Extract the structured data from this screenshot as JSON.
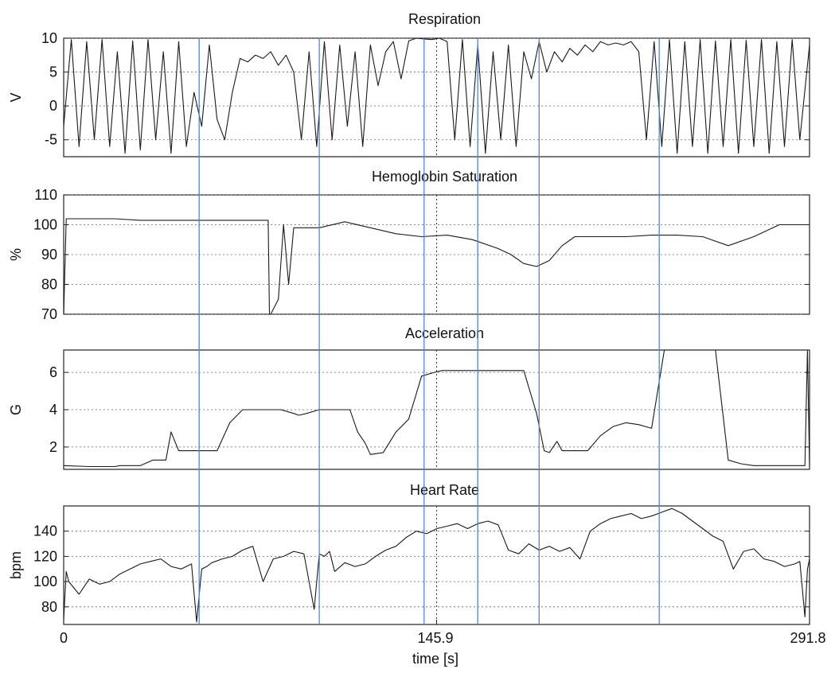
{
  "figure": {
    "xlabel": "time [s]",
    "x_range": [
      0,
      291.8
    ],
    "x_ticks": [
      "0",
      "145.9",
      "291.8"
    ],
    "event_lines_color": "#5a82c8",
    "dotted_midline_at": 145.9
  },
  "chart_data": [
    {
      "type": "line",
      "title": "Respiration",
      "ylabel": "V",
      "ylim": [
        -7.5,
        10
      ],
      "yticks": [
        "10",
        "5",
        "0",
        "-5"
      ],
      "grid": true,
      "series": [
        {
          "x": [
            0,
            3,
            6,
            9,
            12,
            15,
            18,
            21,
            24,
            27,
            30,
            33,
            36,
            39,
            42,
            45,
            48,
            51,
            54,
            57,
            60,
            63,
            66,
            69,
            72,
            75,
            78,
            81,
            84,
            87,
            90,
            93,
            96,
            99,
            102,
            105,
            108,
            111,
            114,
            117,
            120,
            123,
            126,
            129,
            132,
            135,
            138,
            141,
            144,
            147,
            150,
            153,
            156,
            159,
            162,
            165,
            168,
            171,
            174,
            177,
            180,
            183,
            186,
            189,
            192,
            195,
            198,
            201,
            204,
            207,
            210,
            213,
            216,
            219,
            222,
            225,
            228,
            231,
            234,
            237,
            240,
            243,
            246,
            249,
            252,
            255,
            258,
            261,
            264,
            267,
            270,
            273,
            276,
            279,
            282,
            285,
            288,
            291.8
          ],
          "y": [
            -3,
            9.8,
            -6,
            9.5,
            -5,
            9.8,
            -6,
            8,
            -7,
            9.6,
            -6.5,
            9.8,
            -5,
            8,
            -7,
            9.5,
            -6,
            2,
            -3,
            9,
            -2,
            -5,
            2,
            7,
            6.5,
            7.5,
            7,
            8,
            6,
            7.5,
            5,
            -5,
            8,
            -6,
            9.5,
            -5,
            9,
            -3,
            8,
            -6,
            9,
            3,
            8,
            9.5,
            4,
            9.6,
            10,
            9.9,
            9.8,
            10,
            9.5,
            -5,
            9.8,
            -6,
            9,
            -7,
            8,
            -5,
            9,
            -6,
            8,
            4,
            9.5,
            5,
            8,
            6.5,
            8.5,
            7.5,
            9,
            8,
            9.5,
            9,
            9.3,
            9,
            9.5,
            8,
            -5,
            9.5,
            -6,
            9.8,
            -7,
            9.5,
            -6,
            9.8,
            -7,
            9.6,
            -6,
            9.8,
            -7,
            9.7,
            -6,
            9.8,
            -7,
            9.5,
            -6,
            9.8,
            -5,
            9
          ]
        }
      ]
    },
    {
      "type": "line",
      "title": "Hemoglobin Saturation",
      "ylabel": "%",
      "ylim": [
        70,
        110
      ],
      "yticks": [
        "110",
        "100",
        "90",
        "80",
        "70"
      ],
      "grid": true,
      "series": [
        {
          "x": [
            0,
            1,
            2,
            10,
            20,
            30,
            40,
            50,
            60,
            65,
            70,
            75,
            80,
            80.5,
            81,
            84,
            86,
            88,
            90,
            95,
            100,
            110,
            120,
            130,
            140,
            150,
            160,
            170,
            175,
            180,
            185,
            190,
            195,
            200,
            210,
            220,
            230,
            240,
            250,
            260,
            270,
            280,
            291.8
          ],
          "y": [
            70,
            102,
            102,
            102,
            102,
            101.5,
            101.5,
            101.5,
            101.5,
            101.5,
            101.5,
            101.5,
            101.5,
            70,
            70,
            75,
            100,
            80,
            99,
            99,
            99,
            101,
            99,
            97,
            96,
            96.5,
            95,
            92,
            90,
            87,
            86,
            88,
            93,
            96,
            96,
            96,
            96.5,
            96.5,
            96,
            93,
            96,
            100,
            100
          ]
        }
      ]
    },
    {
      "type": "line",
      "title": "Acceleration",
      "ylabel": "G",
      "ylim": [
        0.8,
        7.2
      ],
      "yticks": [
        "6",
        "4",
        "2"
      ],
      "grid": true,
      "series": [
        {
          "x": [
            0,
            10,
            20,
            22,
            28,
            30,
            35,
            40,
            42,
            45,
            50,
            55,
            60,
            65,
            70,
            75,
            80,
            85,
            90,
            92,
            95,
            100,
            105,
            110,
            112,
            115,
            118,
            120,
            125,
            130,
            135,
            140,
            145,
            148,
            150,
            155,
            160,
            163,
            165,
            170,
            175,
            180,
            185,
            188,
            190,
            193,
            195,
            200,
            205,
            210,
            215,
            220,
            225,
            230,
            235,
            240,
            245,
            250,
            255,
            260,
            265,
            270,
            275,
            280,
            285,
            290,
            291,
            291.8
          ],
          "y": [
            1,
            0.95,
            0.95,
            1,
            1,
            1,
            1.3,
            1.3,
            2.8,
            1.8,
            1.8,
            1.8,
            1.8,
            3.3,
            4,
            4,
            4,
            4,
            3.8,
            3.7,
            3.8,
            4,
            4,
            4,
            4,
            2.8,
            2.2,
            1.6,
            1.7,
            2.8,
            3.5,
            5.8,
            6,
            6.1,
            6.1,
            6.1,
            6.1,
            6.1,
            6.1,
            6.1,
            6.1,
            6.1,
            3.8,
            1.8,
            1.7,
            2.3,
            1.8,
            1.8,
            1.8,
            2.6,
            3.1,
            3.3,
            3.2,
            3,
            7.2,
            7.2,
            7.2,
            7.2,
            7.2,
            1.3,
            1.1,
            1.0,
            1.0,
            1.0,
            1.0,
            1.0,
            7.2,
            1.0
          ]
        }
      ]
    },
    {
      "type": "line",
      "title": "Heart Rate",
      "ylabel": "bpm",
      "ylim": [
        66,
        160
      ],
      "yticks": [
        "140",
        "120",
        "100",
        "80"
      ],
      "grid": true,
      "series": [
        {
          "x": [
            0,
            1,
            2,
            4,
            6,
            8,
            10,
            14,
            18,
            22,
            26,
            30,
            34,
            38,
            42,
            46,
            50,
            52,
            54,
            56,
            58,
            62,
            66,
            70,
            74,
            78,
            82,
            86,
            90,
            94,
            98,
            100,
            102,
            104,
            106,
            110,
            114,
            118,
            122,
            126,
            130,
            134,
            138,
            142,
            146,
            150,
            154,
            158,
            162,
            166,
            170,
            174,
            178,
            182,
            186,
            190,
            194,
            198,
            202,
            206,
            210,
            214,
            218,
            222,
            226,
            230,
            234,
            238,
            242,
            246,
            250,
            254,
            258,
            262,
            266,
            270,
            274,
            278,
            282,
            286,
            288,
            290,
            291,
            291.8
          ],
          "y": [
            70,
            108,
            100,
            95,
            90,
            96,
            102,
            98,
            100,
            106,
            110,
            114,
            116,
            118,
            112,
            110,
            114,
            68,
            110,
            112,
            115,
            118,
            120,
            125,
            128,
            100,
            118,
            120,
            124,
            122,
            78,
            122,
            120,
            124,
            108,
            115,
            112,
            114,
            120,
            125,
            128,
            135,
            140,
            138,
            142,
            144,
            146,
            142,
            146,
            148,
            145,
            125,
            122,
            130,
            125,
            128,
            124,
            127,
            118,
            140,
            146,
            150,
            152,
            154,
            150,
            152,
            155,
            158,
            154,
            148,
            142,
            136,
            132,
            110,
            124,
            126,
            118,
            116,
            112,
            114,
            116,
            72,
            110,
            118
          ]
        }
      ]
    }
  ]
}
